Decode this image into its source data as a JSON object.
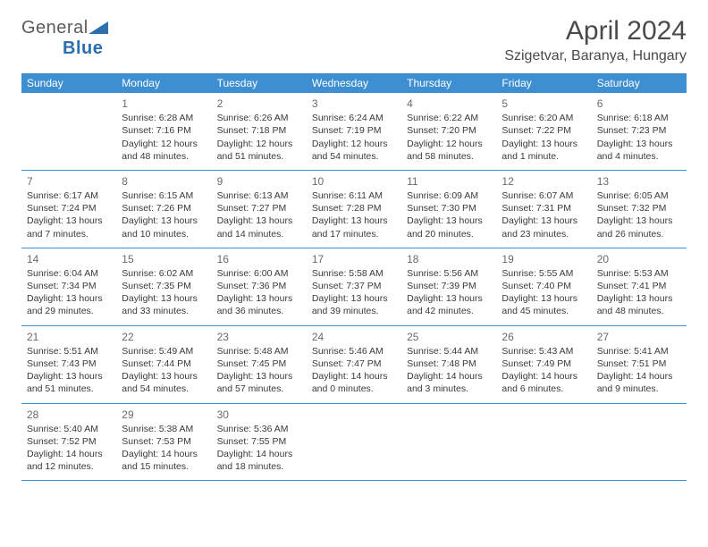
{
  "logo": {
    "text_a": "General",
    "text_b": "Blue",
    "color_gray": "#5b5b5b",
    "color_blue": "#2c6fae"
  },
  "title": "April 2024",
  "location": "Szigetvar, Baranya, Hungary",
  "colors": {
    "header_bg": "#3d8fd1",
    "header_text": "#ffffff",
    "row_border": "#3d8fd1",
    "text": "#3a3a3a",
    "day_num": "#6a6a6a"
  },
  "weekdays": [
    "Sunday",
    "Monday",
    "Tuesday",
    "Wednesday",
    "Thursday",
    "Friday",
    "Saturday"
  ],
  "weeks": [
    [
      null,
      {
        "n": "1",
        "sr": "6:28 AM",
        "ss": "7:16 PM",
        "dl": "12 hours and 48 minutes."
      },
      {
        "n": "2",
        "sr": "6:26 AM",
        "ss": "7:18 PM",
        "dl": "12 hours and 51 minutes."
      },
      {
        "n": "3",
        "sr": "6:24 AM",
        "ss": "7:19 PM",
        "dl": "12 hours and 54 minutes."
      },
      {
        "n": "4",
        "sr": "6:22 AM",
        "ss": "7:20 PM",
        "dl": "12 hours and 58 minutes."
      },
      {
        "n": "5",
        "sr": "6:20 AM",
        "ss": "7:22 PM",
        "dl": "13 hours and 1 minute."
      },
      {
        "n": "6",
        "sr": "6:18 AM",
        "ss": "7:23 PM",
        "dl": "13 hours and 4 minutes."
      }
    ],
    [
      {
        "n": "7",
        "sr": "6:17 AM",
        "ss": "7:24 PM",
        "dl": "13 hours and 7 minutes."
      },
      {
        "n": "8",
        "sr": "6:15 AM",
        "ss": "7:26 PM",
        "dl": "13 hours and 10 minutes."
      },
      {
        "n": "9",
        "sr": "6:13 AM",
        "ss": "7:27 PM",
        "dl": "13 hours and 14 minutes."
      },
      {
        "n": "10",
        "sr": "6:11 AM",
        "ss": "7:28 PM",
        "dl": "13 hours and 17 minutes."
      },
      {
        "n": "11",
        "sr": "6:09 AM",
        "ss": "7:30 PM",
        "dl": "13 hours and 20 minutes."
      },
      {
        "n": "12",
        "sr": "6:07 AM",
        "ss": "7:31 PM",
        "dl": "13 hours and 23 minutes."
      },
      {
        "n": "13",
        "sr": "6:05 AM",
        "ss": "7:32 PM",
        "dl": "13 hours and 26 minutes."
      }
    ],
    [
      {
        "n": "14",
        "sr": "6:04 AM",
        "ss": "7:34 PM",
        "dl": "13 hours and 29 minutes."
      },
      {
        "n": "15",
        "sr": "6:02 AM",
        "ss": "7:35 PM",
        "dl": "13 hours and 33 minutes."
      },
      {
        "n": "16",
        "sr": "6:00 AM",
        "ss": "7:36 PM",
        "dl": "13 hours and 36 minutes."
      },
      {
        "n": "17",
        "sr": "5:58 AM",
        "ss": "7:37 PM",
        "dl": "13 hours and 39 minutes."
      },
      {
        "n": "18",
        "sr": "5:56 AM",
        "ss": "7:39 PM",
        "dl": "13 hours and 42 minutes."
      },
      {
        "n": "19",
        "sr": "5:55 AM",
        "ss": "7:40 PM",
        "dl": "13 hours and 45 minutes."
      },
      {
        "n": "20",
        "sr": "5:53 AM",
        "ss": "7:41 PM",
        "dl": "13 hours and 48 minutes."
      }
    ],
    [
      {
        "n": "21",
        "sr": "5:51 AM",
        "ss": "7:43 PM",
        "dl": "13 hours and 51 minutes."
      },
      {
        "n": "22",
        "sr": "5:49 AM",
        "ss": "7:44 PM",
        "dl": "13 hours and 54 minutes."
      },
      {
        "n": "23",
        "sr": "5:48 AM",
        "ss": "7:45 PM",
        "dl": "13 hours and 57 minutes."
      },
      {
        "n": "24",
        "sr": "5:46 AM",
        "ss": "7:47 PM",
        "dl": "14 hours and 0 minutes."
      },
      {
        "n": "25",
        "sr": "5:44 AM",
        "ss": "7:48 PM",
        "dl": "14 hours and 3 minutes."
      },
      {
        "n": "26",
        "sr": "5:43 AM",
        "ss": "7:49 PM",
        "dl": "14 hours and 6 minutes."
      },
      {
        "n": "27",
        "sr": "5:41 AM",
        "ss": "7:51 PM",
        "dl": "14 hours and 9 minutes."
      }
    ],
    [
      {
        "n": "28",
        "sr": "5:40 AM",
        "ss": "7:52 PM",
        "dl": "14 hours and 12 minutes."
      },
      {
        "n": "29",
        "sr": "5:38 AM",
        "ss": "7:53 PM",
        "dl": "14 hours and 15 minutes."
      },
      {
        "n": "30",
        "sr": "5:36 AM",
        "ss": "7:55 PM",
        "dl": "14 hours and 18 minutes."
      },
      null,
      null,
      null,
      null
    ]
  ],
  "labels": {
    "sunrise": "Sunrise:",
    "sunset": "Sunset:",
    "daylight": "Daylight:"
  }
}
